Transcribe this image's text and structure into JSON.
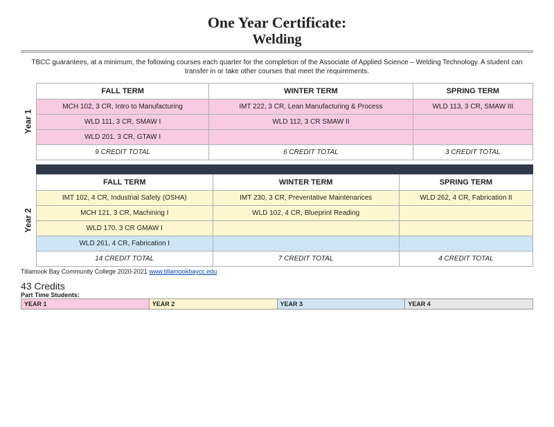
{
  "title": {
    "line1": "One Year Certificate:",
    "line2": "Welding"
  },
  "intro": "TBCC guarantees, at a minimum, the following courses each quarter for the completion of the Associate of Applied Science – Welding Technology. A student can transfer in or take other courses that meet the requirements.",
  "terms": {
    "fall": "FALL TERM",
    "winter": "WINTER TERM",
    "spring": "SPRING TERM"
  },
  "year1": {
    "label": "Year 1",
    "rows": [
      {
        "class": "row-pink",
        "cells": [
          "MCH 102, 3 CR, Intro to Manufacturing",
          "IMT 222, 3 CR, Lean Manufacturing & Process",
          "WLD 113, 3 CR, SMAW III"
        ]
      },
      {
        "class": "row-pink",
        "cells": [
          "WLD 111, 3 CR, SMAW I",
          "WLD 112, 3 CR SMAW II",
          ""
        ]
      },
      {
        "class": "row-pink",
        "cells": [
          "WLD 201. 3 CR, GTAW I",
          "",
          ""
        ]
      },
      {
        "class": "row-total",
        "cells": [
          "9 CREDIT TOTAL",
          "6 CREDIT TOTAL",
          "3 CREDIT TOTAL"
        ]
      }
    ]
  },
  "year2": {
    "label": "Year 2",
    "rows": [
      {
        "class": "row-yellow",
        "cells": [
          "IMT 102, 4 CR, Industrial Safety (OSHA)",
          "IMT 230, 3 CR, Preventative Maintenances",
          "WLD 262, 4 CR, Fabrication II"
        ]
      },
      {
        "class": "row-yellow",
        "cells": [
          "MCH 121, 3 CR, Machining I",
          "WLD 102, 4 CR, Blueprint Reading",
          ""
        ]
      },
      {
        "class": "row-yellow",
        "cells": [
          "WLD 170, 3 CR GMAW I",
          "",
          ""
        ]
      },
      {
        "class": "row-blue",
        "cells": [
          "WLD 261, 4 CR, Fabrication I",
          "",
          ""
        ]
      },
      {
        "class": "row-total",
        "cells": [
          "14  CREDIT TOTAL",
          "7 CREDIT TOTAL",
          "4 CREDIT TOTAL"
        ]
      }
    ]
  },
  "footer": {
    "org": "Tillamook Bay Community College 2020-2021 ",
    "link_text": "www.tillamookbaycc.edu",
    "link_href": "http://www.tillamookbaycc.edu"
  },
  "credits_total": "43 Credits",
  "part_time_label": "Part Time Students:",
  "legend": [
    {
      "label": "YEAR 1",
      "bg": "#f8cbe0"
    },
    {
      "label": "YEAR 2",
      "bg": "#fdf6cf"
    },
    {
      "label": "YEAR 3",
      "bg": "#cfe5f5"
    },
    {
      "label": "YEAR 4",
      "bg": "#e6e6e6"
    }
  ],
  "colors": {
    "pink": "#f8cbe0",
    "yellow": "#fdf6cf",
    "blue": "#cfe5f5",
    "grey": "#e6e6e6",
    "divider": "#2f3b4a",
    "border": "#a8b0b8"
  }
}
